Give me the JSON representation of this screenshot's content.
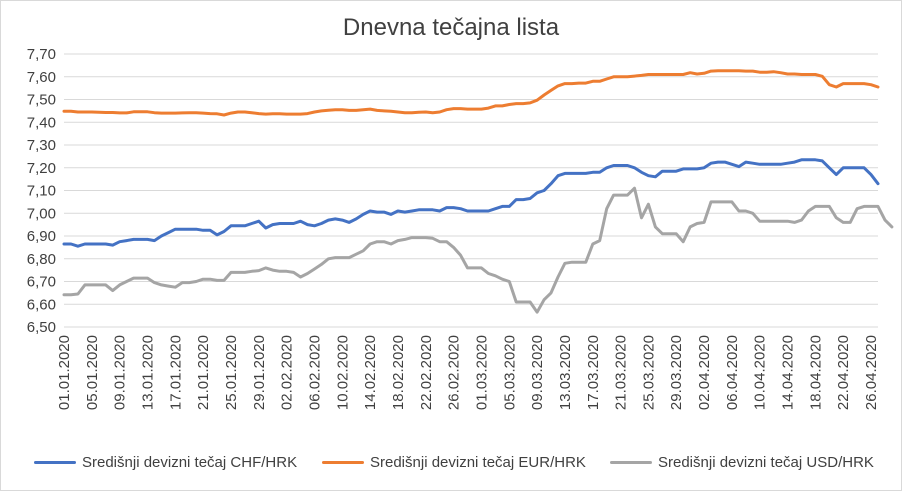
{
  "chart_data": {
    "type": "line",
    "title": "Dnevna tečajna lista",
    "ylim": [
      6.5,
      7.7
    ],
    "yticks": [
      "6,50",
      "6,60",
      "6,70",
      "6,80",
      "6,90",
      "7,00",
      "7,10",
      "7,20",
      "7,30",
      "7,40",
      "7,50",
      "7,60",
      "7,70"
    ],
    "xtick_labels": [
      "01.01.2020",
      "05.01.2020",
      "09.01.2020",
      "13.01.2020",
      "17.01.2020",
      "21.01.2020",
      "25.01.2020",
      "29.01.2020",
      "02.02.2020",
      "06.02.2020",
      "10.02.2020",
      "14.02.2020",
      "18.02.2020",
      "22.02.2020",
      "26.02.2020",
      "01.03.2020",
      "05.03.2020",
      "09.03.2020",
      "13.03.2020",
      "17.03.2020",
      "21.03.2020",
      "25.03.2020",
      "29.03.2020",
      "02.04.2020",
      "06.04.2020",
      "10.04.2020",
      "14.04.2020",
      "18.04.2020",
      "22.04.2020",
      "26.04.2020"
    ],
    "grid": true,
    "legend_position": "bottom",
    "series": [
      {
        "name": "Središnji devizni tečaj CHF/HRK",
        "color": "#4472c4",
        "values": [
          6.865,
          6.865,
          6.855,
          6.865,
          6.865,
          6.865,
          6.865,
          6.86,
          6.875,
          6.88,
          6.885,
          6.885,
          6.885,
          6.88,
          6.9,
          6.915,
          6.93,
          6.93,
          6.93,
          6.93,
          6.925,
          6.925,
          6.905,
          6.92,
          6.945,
          6.945,
          6.945,
          6.955,
          6.965,
          6.935,
          6.95,
          6.955,
          6.955,
          6.955,
          6.965,
          6.95,
          6.945,
          6.955,
          6.97,
          6.975,
          6.97,
          6.96,
          6.975,
          6.995,
          7.01,
          7.005,
          7.005,
          6.995,
          7.01,
          7.005,
          7.01,
          7.015,
          7.015,
          7.015,
          7.01,
          7.025,
          7.025,
          7.02,
          7.01,
          7.01,
          7.01,
          7.01,
          7.02,
          7.03,
          7.03,
          7.06,
          7.06,
          7.065,
          7.09,
          7.1,
          7.13,
          7.165,
          7.175,
          7.175,
          7.175,
          7.175,
          7.18,
          7.18,
          7.2,
          7.21,
          7.21,
          7.21,
          7.2,
          7.18,
          7.165,
          7.16,
          7.185,
          7.185,
          7.185,
          7.195,
          7.195,
          7.195,
          7.2,
          7.22,
          7.225,
          7.225,
          7.215,
          7.205,
          7.225,
          7.22,
          7.215,
          7.215,
          7.215,
          7.215,
          7.22,
          7.225,
          7.235,
          7.235,
          7.235,
          7.23,
          7.2,
          7.17,
          7.2,
          7.2,
          7.2,
          7.2,
          7.17,
          7.13
        ]
      },
      {
        "name": "Središnji devizni tečaj EUR/HRK",
        "color": "#ed7d31",
        "values": [
          7.448,
          7.448,
          7.445,
          7.445,
          7.445,
          7.444,
          7.443,
          7.443,
          7.441,
          7.441,
          7.446,
          7.446,
          7.446,
          7.442,
          7.44,
          7.44,
          7.44,
          7.441,
          7.442,
          7.442,
          7.44,
          7.438,
          7.437,
          7.432,
          7.44,
          7.445,
          7.445,
          7.442,
          7.438,
          7.436,
          7.437,
          7.437,
          7.436,
          7.436,
          7.436,
          7.438,
          7.445,
          7.45,
          7.453,
          7.455,
          7.455,
          7.452,
          7.452,
          7.455,
          7.458,
          7.452,
          7.45,
          7.448,
          7.445,
          7.442,
          7.442,
          7.444,
          7.445,
          7.442,
          7.445,
          7.455,
          7.46,
          7.46,
          7.458,
          7.458,
          7.458,
          7.462,
          7.472,
          7.472,
          7.478,
          7.482,
          7.482,
          7.485,
          7.497,
          7.52,
          7.54,
          7.56,
          7.57,
          7.57,
          7.572,
          7.572,
          7.58,
          7.58,
          7.59,
          7.6,
          7.6,
          7.6,
          7.603,
          7.606,
          7.61,
          7.61,
          7.61,
          7.61,
          7.61,
          7.61,
          7.618,
          7.612,
          7.615,
          7.625,
          7.626,
          7.626,
          7.626,
          7.626,
          7.625,
          7.625,
          7.62,
          7.62,
          7.622,
          7.618,
          7.612,
          7.612,
          7.61,
          7.61,
          7.61,
          7.602,
          7.565,
          7.555,
          7.57,
          7.57,
          7.57,
          7.57,
          7.565,
          7.555
        ]
      },
      {
        "name": "Središnji devizni tečaj USD/HRK",
        "color": "#a5a5a5",
        "values": [
          6.642,
          6.642,
          6.645,
          6.685,
          6.685,
          6.685,
          6.685,
          6.66,
          6.685,
          6.7,
          6.715,
          6.715,
          6.715,
          6.695,
          6.685,
          6.68,
          6.675,
          6.695,
          6.695,
          6.7,
          6.71,
          6.71,
          6.705,
          6.705,
          6.74,
          6.74,
          6.74,
          6.745,
          6.748,
          6.76,
          6.75,
          6.745,
          6.745,
          6.74,
          6.72,
          6.735,
          6.755,
          6.775,
          6.8,
          6.805,
          6.805,
          6.805,
          6.82,
          6.835,
          6.865,
          6.875,
          6.875,
          6.865,
          6.88,
          6.885,
          6.893,
          6.893,
          6.893,
          6.89,
          6.875,
          6.875,
          6.85,
          6.815,
          6.76,
          6.76,
          6.76,
          6.735,
          6.725,
          6.71,
          6.7,
          6.61,
          6.61,
          6.61,
          6.565,
          6.62,
          6.65,
          6.72,
          6.78,
          6.785,
          6.785,
          6.785,
          6.865,
          6.88,
          7.02,
          7.08,
          7.08,
          7.08,
          7.11,
          6.98,
          7.04,
          6.94,
          6.91,
          6.91,
          6.91,
          6.875,
          6.94,
          6.955,
          6.96,
          7.05,
          7.05,
          7.05,
          7.05,
          7.01,
          7.01,
          7.0,
          6.965,
          6.965,
          6.965,
          6.965,
          6.965,
          6.96,
          6.97,
          7.01,
          7.03,
          7.03,
          7.03,
          6.98,
          6.96,
          6.96,
          7.02,
          7.03,
          7.03,
          7.03,
          6.97,
          6.94
        ]
      }
    ]
  }
}
